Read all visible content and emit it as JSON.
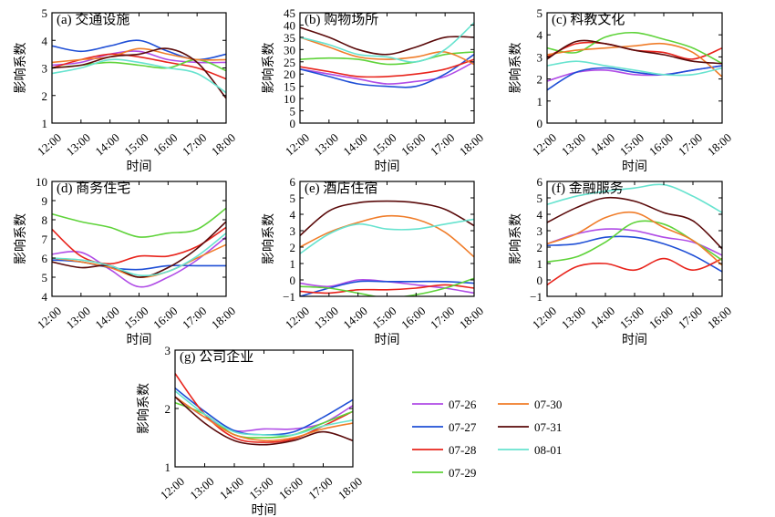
{
  "figure": {
    "legend": [
      {
        "name": "07-26",
        "color": "#b04ce6"
      },
      {
        "name": "07-27",
        "color": "#1f4fd6"
      },
      {
        "name": "07-28",
        "color": "#e8241c"
      },
      {
        "name": "07-29",
        "color": "#5fd33a"
      },
      {
        "name": "07-30",
        "color": "#f07d2a"
      },
      {
        "name": "07-31",
        "color": "#5a0a0a"
      },
      {
        "name": "08-01",
        "color": "#67e3cf"
      }
    ]
  },
  "chart_data": [
    {
      "type": "line",
      "title": "(a) 交通设施",
      "xlabel": "时间",
      "ylabel": "影响系数",
      "x": [
        "12:00",
        "13:00",
        "14:00",
        "15:00",
        "16:00",
        "17:00",
        "18:00"
      ],
      "ylim": [
        1,
        5
      ],
      "yticks": [
        1,
        2,
        3,
        4,
        5
      ],
      "grid": false,
      "series": [
        {
          "name": "07-26",
          "values": [
            3.1,
            3.2,
            3.5,
            3.6,
            3.3,
            3.2,
            3.2
          ]
        },
        {
          "name": "07-27",
          "values": [
            3.8,
            3.6,
            3.8,
            4.0,
            3.6,
            3.3,
            3.5
          ]
        },
        {
          "name": "07-28",
          "values": [
            3.0,
            3.3,
            3.5,
            3.4,
            3.2,
            3.0,
            2.6
          ]
        },
        {
          "name": "07-29",
          "values": [
            3.0,
            3.1,
            3.2,
            3.1,
            3.0,
            3.3,
            2.9
          ]
        },
        {
          "name": "07-30",
          "values": [
            3.2,
            3.3,
            3.4,
            3.7,
            3.5,
            3.3,
            3.3
          ]
        },
        {
          "name": "07-31",
          "values": [
            3.0,
            3.1,
            3.4,
            3.5,
            3.7,
            3.2,
            1.9
          ]
        },
        {
          "name": "08-01",
          "values": [
            2.8,
            3.0,
            3.3,
            3.2,
            3.0,
            2.8,
            2.1
          ]
        }
      ]
    },
    {
      "type": "line",
      "title": "(b) 购物场所",
      "xlabel": "时间",
      "ylabel": "影响系数",
      "x": [
        "12:00",
        "13:00",
        "14:00",
        "15:00",
        "16:00",
        "17:00",
        "18:00"
      ],
      "ylim": [
        0,
        45
      ],
      "yticks": [
        0,
        5,
        10,
        15,
        20,
        25,
        30,
        35,
        40,
        45
      ],
      "grid": false,
      "series": [
        {
          "name": "07-26",
          "values": [
            22,
            20,
            18,
            16,
            17,
            19,
            25
          ]
        },
        {
          "name": "07-27",
          "values": [
            22,
            19,
            16,
            15,
            15,
            20,
            28
          ]
        },
        {
          "name": "07-28",
          "values": [
            23,
            21,
            19,
            19,
            20,
            22,
            26
          ]
        },
        {
          "name": "07-29",
          "values": [
            26,
            26.5,
            26,
            24,
            25,
            28,
            29
          ]
        },
        {
          "name": "07-30",
          "values": [
            35,
            31,
            27,
            26,
            27,
            29,
            24
          ]
        },
        {
          "name": "07-31",
          "values": [
            39,
            35,
            30,
            28,
            31,
            35,
            35
          ]
        },
        {
          "name": "08-01",
          "values": [
            35,
            32,
            28,
            27,
            25,
            30,
            41
          ]
        }
      ]
    },
    {
      "type": "line",
      "title": "(c) 科教文化",
      "xlabel": "时间",
      "ylabel": "影响系数",
      "x": [
        "12:00",
        "13:00",
        "14:00",
        "15:00",
        "16:00",
        "17:00",
        "18:00"
      ],
      "ylim": [
        0,
        5
      ],
      "yticks": [
        0,
        1,
        2,
        3,
        4,
        5
      ],
      "grid": false,
      "series": [
        {
          "name": "07-26",
          "values": [
            1.9,
            2.3,
            2.4,
            2.2,
            2.2,
            2.4,
            2.6
          ]
        },
        {
          "name": "07-27",
          "values": [
            1.5,
            2.3,
            2.5,
            2.3,
            2.2,
            2.4,
            2.6
          ]
        },
        {
          "name": "07-28",
          "values": [
            3.0,
            3.6,
            3.6,
            3.3,
            3.2,
            2.9,
            3.4
          ]
        },
        {
          "name": "07-29",
          "values": [
            3.4,
            3.2,
            3.9,
            4.1,
            3.8,
            3.4,
            2.7
          ]
        },
        {
          "name": "07-30",
          "values": [
            3.1,
            3.3,
            3.4,
            3.5,
            3.6,
            3.2,
            2.1
          ]
        },
        {
          "name": "07-31",
          "values": [
            2.9,
            3.7,
            3.6,
            3.3,
            3.1,
            2.8,
            2.7
          ]
        },
        {
          "name": "08-01",
          "values": [
            2.6,
            2.8,
            2.6,
            2.4,
            2.2,
            2.2,
            2.5
          ]
        }
      ]
    },
    {
      "type": "line",
      "title": "(d) 商务住宅",
      "xlabel": "时间",
      "ylabel": "影响系数",
      "x": [
        "12:00",
        "13:00",
        "14:00",
        "15:00",
        "16:00",
        "17:00",
        "18:00"
      ],
      "ylim": [
        4,
        10
      ],
      "yticks": [
        4,
        5,
        6,
        7,
        8,
        9,
        10
      ],
      "grid": false,
      "series": [
        {
          "name": "07-26",
          "values": [
            6.2,
            6.3,
            5.4,
            4.5,
            5.0,
            5.9,
            7.1
          ]
        },
        {
          "name": "07-27",
          "values": [
            5.9,
            5.8,
            5.5,
            5.4,
            5.6,
            5.6,
            5.6
          ]
        },
        {
          "name": "07-28",
          "values": [
            7.5,
            6.1,
            5.7,
            6.1,
            6.1,
            6.6,
            7.6
          ]
        },
        {
          "name": "07-29",
          "values": [
            8.3,
            7.9,
            7.6,
            7.1,
            7.3,
            7.5,
            8.6
          ]
        },
        {
          "name": "07-30",
          "values": [
            6.0,
            5.8,
            5.5,
            5.0,
            5.3,
            6.0,
            6.7
          ]
        },
        {
          "name": "07-31",
          "values": [
            5.8,
            5.5,
            5.6,
            5.0,
            5.5,
            6.5,
            7.9
          ]
        },
        {
          "name": "08-01",
          "values": [
            6.0,
            5.9,
            5.6,
            5.1,
            5.3,
            6.1,
            7.3
          ]
        }
      ]
    },
    {
      "type": "line",
      "title": "(e) 酒店住宿",
      "xlabel": "时间",
      "ylabel": "影响系数",
      "x": [
        "12:00",
        "13:00",
        "14:00",
        "15:00",
        "16:00",
        "17:00",
        "18:00"
      ],
      "ylim": [
        -1,
        6
      ],
      "yticks": [
        -1,
        0,
        1,
        2,
        3,
        4,
        5,
        6
      ],
      "grid": false,
      "series": [
        {
          "name": "07-26",
          "values": [
            -0.2,
            -0.4,
            0.0,
            -0.1,
            -0.3,
            -0.5,
            -0.8
          ]
        },
        {
          "name": "07-27",
          "values": [
            -1.0,
            -0.5,
            -0.1,
            -0.1,
            -0.1,
            -0.1,
            -0.2
          ]
        },
        {
          "name": "07-28",
          "values": [
            -0.7,
            -0.8,
            -0.6,
            -0.6,
            -0.5,
            -0.3,
            -0.5
          ]
        },
        {
          "name": "07-29",
          "values": [
            -0.4,
            -0.5,
            -0.8,
            -1.1,
            -0.9,
            -0.5,
            0.1
          ]
        },
        {
          "name": "07-30",
          "values": [
            2.0,
            2.9,
            3.5,
            3.9,
            3.7,
            2.9,
            1.4
          ]
        },
        {
          "name": "07-31",
          "values": [
            2.7,
            4.2,
            4.7,
            4.8,
            4.7,
            4.3,
            3.3
          ]
        },
        {
          "name": "08-01",
          "values": [
            1.6,
            2.8,
            3.4,
            3.1,
            3.1,
            3.4,
            3.7
          ]
        }
      ]
    },
    {
      "type": "line",
      "title": "(f) 金融服务",
      "xlabel": "时间",
      "ylabel": "影响系数",
      "x": [
        "12:00",
        "13:00",
        "14:00",
        "15:00",
        "16:00",
        "17:00",
        "18:00"
      ],
      "ylim": [
        -1,
        6
      ],
      "yticks": [
        -1,
        0,
        1,
        2,
        3,
        4,
        5,
        6
      ],
      "grid": false,
      "series": [
        {
          "name": "07-26",
          "values": [
            2.2,
            2.8,
            3.1,
            3.0,
            2.6,
            2.3,
            1.5
          ]
        },
        {
          "name": "07-27",
          "values": [
            2.1,
            2.2,
            2.6,
            2.6,
            2.2,
            1.5,
            0.5
          ]
        },
        {
          "name": "07-28",
          "values": [
            -0.3,
            0.8,
            1.0,
            0.6,
            1.3,
            0.6,
            1.3
          ]
        },
        {
          "name": "07-29",
          "values": [
            1.1,
            1.4,
            2.3,
            3.5,
            3.4,
            2.4,
            1.2
          ]
        },
        {
          "name": "07-30",
          "values": [
            2.2,
            2.8,
            3.8,
            4.1,
            3.2,
            2.4,
            0.9
          ]
        },
        {
          "name": "07-31",
          "values": [
            3.5,
            4.4,
            5.0,
            4.8,
            4.1,
            3.6,
            1.9
          ]
        },
        {
          "name": "08-01",
          "values": [
            4.6,
            5.1,
            5.4,
            5.6,
            5.8,
            5.1,
            4.1
          ]
        }
      ]
    },
    {
      "type": "line",
      "title": "(g) 公司企业",
      "xlabel": "时间",
      "ylabel": "影响系数",
      "x": [
        "12:00",
        "13:00",
        "14:00",
        "15:00",
        "16:00",
        "17:00",
        "18:00"
      ],
      "ylim": [
        1,
        3
      ],
      "yticks": [
        1,
        2,
        3
      ],
      "grid": false,
      "series": [
        {
          "name": "07-26",
          "values": [
            2.2,
            1.85,
            1.62,
            1.65,
            1.65,
            1.75,
            2.05
          ]
        },
        {
          "name": "07-27",
          "values": [
            2.35,
            1.95,
            1.62,
            1.55,
            1.6,
            1.85,
            2.15
          ]
        },
        {
          "name": "07-28",
          "values": [
            2.6,
            1.9,
            1.5,
            1.42,
            1.48,
            1.7,
            1.95
          ]
        },
        {
          "name": "07-29",
          "values": [
            2.1,
            1.9,
            1.55,
            1.5,
            1.55,
            1.75,
            1.95
          ]
        },
        {
          "name": "07-30",
          "values": [
            2.2,
            1.85,
            1.55,
            1.45,
            1.5,
            1.65,
            1.75
          ]
        },
        {
          "name": "07-31",
          "values": [
            2.2,
            1.75,
            1.45,
            1.38,
            1.45,
            1.6,
            1.45
          ]
        },
        {
          "name": "08-01",
          "values": [
            2.3,
            1.9,
            1.6,
            1.55,
            1.55,
            1.7,
            1.8
          ]
        }
      ]
    }
  ]
}
